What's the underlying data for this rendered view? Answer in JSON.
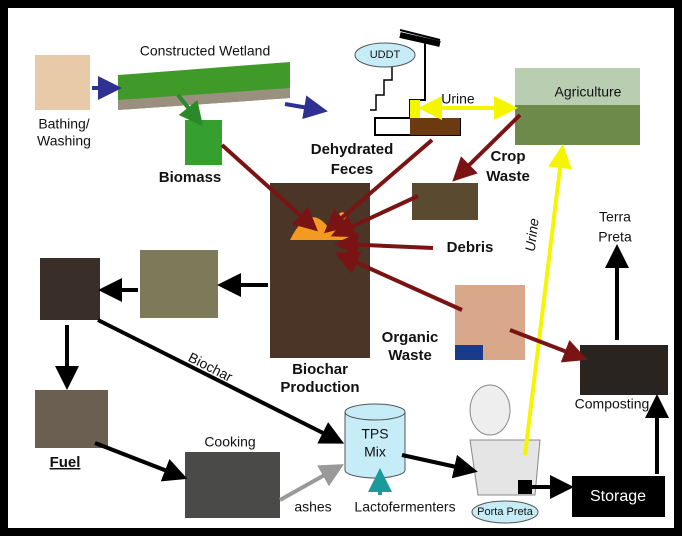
{
  "labels": {
    "constructed_wetland": "Constructed Wetland",
    "bathing": [
      "Bathing/",
      "Washing"
    ],
    "uddt": "UDDT",
    "urine_top": "Urine",
    "agriculture": "Agriculture",
    "dehydrated_feces": [
      "Dehydrated",
      "Feces"
    ],
    "crop_waste": [
      "Crop",
      "Waste"
    ],
    "biomass": "Biomass",
    "debris": "Debris",
    "terra_preta": [
      "Terra",
      "Preta"
    ],
    "urine_side": "Urine",
    "organic_waste": [
      "Organic",
      "Waste"
    ],
    "biochar": "Biochar",
    "biochar_production": [
      "Biochar",
      "Production"
    ],
    "composting": "Composting",
    "fuel": "Fuel",
    "cooking": "Cooking",
    "tps_mix": [
      "TPS",
      "Mix"
    ],
    "ashes": "ashes",
    "lactofermenters": "Lactofermenters",
    "porta_preta": "Porta Preta",
    "storage": "Storage"
  }
}
